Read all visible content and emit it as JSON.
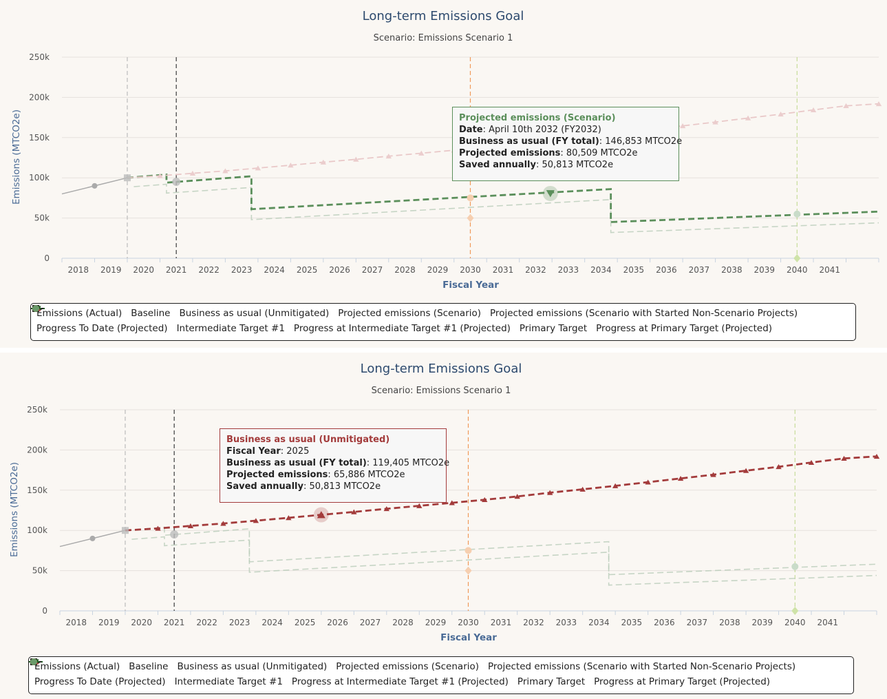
{
  "charts": [
    {
      "title": "Long-term Emissions Goal",
      "subtitle": "Scenario: Emissions Scenario 1",
      "ylabel": "Emissions (MTCO2e)",
      "xlabel": "Fiscal Year",
      "yticks": [
        "0",
        "50k",
        "100k",
        "150k",
        "200k",
        "250k"
      ],
      "xticks": [
        "2018",
        "2019",
        "2020",
        "2021",
        "2022",
        "2023",
        "2024",
        "2025",
        "2026",
        "2027",
        "2028",
        "2029",
        "2030",
        "2031",
        "2032",
        "2033",
        "2034",
        "2035",
        "2036",
        "2037",
        "2038",
        "2039",
        "2040",
        "2041"
      ],
      "tooltip": {
        "header": "Projected emissions (Scenario)",
        "rows": [
          {
            "k": "Date",
            "v": ": April 10th 2032 (FY2032)"
          },
          {
            "k": "Business as usual (FY total)",
            "v": ": 146,853 MTCO2e"
          },
          {
            "k": "Projected emissions",
            "v": ": 80,509 MTCO2e"
          },
          {
            "k": "Saved annually",
            "v": ": 50,813 MTCO2e"
          }
        ]
      }
    },
    {
      "title": "Long-term Emissions Goal",
      "subtitle": "Scenario: Emissions Scenario 1",
      "ylabel": "Emissions (MTCO2e)",
      "xlabel": "Fiscal Year",
      "yticks": [
        "0",
        "50k",
        "100k",
        "150k",
        "200k",
        "250k"
      ],
      "xticks": [
        "2018",
        "2019",
        "2020",
        "2021",
        "2022",
        "2023",
        "2024",
        "2025",
        "2026",
        "2027",
        "2028",
        "2029",
        "2030",
        "2031",
        "2032",
        "2033",
        "2034",
        "2035",
        "2036",
        "2037",
        "2038",
        "2039",
        "2040",
        "2041"
      ],
      "tooltip": {
        "header": "Business as usual (Unmitigated)",
        "rows": [
          {
            "k": "Fiscal Year",
            "v": ": 2025"
          },
          {
            "k": "Business as usual (FY total)",
            "v": ": 119,405 MTCO2e"
          },
          {
            "k": "Projected emissions",
            "v": ": 65,886 MTCO2e"
          },
          {
            "k": "Saved annually",
            "v": ": 50,813 MTCO2e"
          }
        ]
      }
    }
  ],
  "legend": [
    {
      "label": "Emissions (Actual)",
      "symbol": "line-dot",
      "color": "#222222"
    },
    {
      "label": "Baseline",
      "symbol": "square",
      "color": "#222222"
    },
    {
      "label": "Business as usual (Unmitigated)",
      "symbol": "line-tri",
      "color": "#a33b3b"
    },
    {
      "label": "Projected emissions (Scenario)",
      "symbol": "line-tridown",
      "color": "#5b8f5b"
    },
    {
      "label": "Projected emissions (Scenario with Started Non-Scenario Projects)",
      "symbol": "line-tridown",
      "color": "#1f5a1f"
    },
    {
      "label": "Progress To Date (Projected)",
      "symbol": "dot",
      "color": "#111111"
    },
    {
      "label": "Intermediate Target #1",
      "symbol": "diamond",
      "color": "#f0904a"
    },
    {
      "label": "Progress at Intermediate Target #1 (Projected)",
      "symbol": "dot",
      "color": "#f0904a"
    },
    {
      "label": "Primary Target",
      "symbol": "diamond",
      "color": "#8bbd2e"
    },
    {
      "label": "Progress at Primary Target (Projected)",
      "symbol": "dot",
      "color": "#6a9a6a"
    }
  ],
  "colors": {
    "actual": "#aaaaaa",
    "bau": "#a33b3b",
    "scenario": "#5b8f5b",
    "scenario_started": "#1f5a1f",
    "intermediate": "#f0904a",
    "primary": "#8bbd2e"
  },
  "chart_data": [
    {
      "type": "line",
      "title": "Long-term Emissions Goal",
      "subtitle": "Scenario: Emissions Scenario 1",
      "xlabel": "Fiscal Year",
      "ylabel": "Emissions (MTCO2e)",
      "xlim": [
        2017.5,
        2042.5
      ],
      "ylim": [
        0,
        250000
      ],
      "highlighted_series": "Projected emissions (Scenario)",
      "series": [
        {
          "name": "Emissions (Actual)",
          "x": [
            2017.5,
            2018.5,
            2019.5
          ],
          "y": [
            80000,
            90000,
            100000
          ]
        },
        {
          "name": "Business as usual (Unmitigated)",
          "x": [
            2019.5,
            2020.5,
            2021.5,
            2022.5,
            2023.5,
            2024.5,
            2025.5,
            2026.5,
            2027.5,
            2028.5,
            2029.5,
            2030.5,
            2031.5,
            2032.5,
            2033.5,
            2034.5,
            2035.5,
            2036.5,
            2037.5,
            2038.5,
            2039.5,
            2040.5,
            2041.5,
            2042.5
          ],
          "y": [
            100000,
            102500,
            105600,
            108600,
            112100,
            115700,
            119400,
            123000,
            126900,
            130600,
            134300,
            138100,
            142200,
            146900,
            151100,
            155400,
            160000,
            164600,
            169300,
            174300,
            179100,
            184400,
            189500,
            192000
          ]
        },
        {
          "name": "Projected emissions (Scenario with Started Non-Scenario Projects)",
          "x": [
            2019.5,
            2020.7,
            2020.7,
            2023.3,
            2023.3,
            2034.3,
            2034.3,
            2042.5
          ],
          "y": [
            100000,
            104000,
            94000,
            102000,
            61000,
            86000,
            45000,
            58000
          ]
        },
        {
          "name": "Projected emissions (Scenario)",
          "x": [
            2019.7,
            2020.7,
            2020.7,
            2023.3,
            2023.3,
            2034.3,
            2034.3,
            2042.5
          ],
          "y": [
            89000,
            92000,
            81000,
            88000,
            48000,
            73000,
            32000,
            44000
          ]
        }
      ],
      "points": [
        {
          "name": "Baseline",
          "x": 2019.5,
          "y": 100000
        },
        {
          "name": "Progress To Date (Projected)",
          "x": 2021,
          "y": 95000
        },
        {
          "name": "Intermediate Target #1",
          "x": 2030,
          "y": 50000
        },
        {
          "name": "Progress at Intermediate Target #1 (Projected)",
          "x": 2030,
          "y": 75000
        },
        {
          "name": "Primary Target",
          "x": 2040,
          "y": 0
        },
        {
          "name": "Progress at Primary Target (Projected)",
          "x": 2040,
          "y": 55000
        }
      ],
      "vertical_lines": [
        2019.5,
        2021,
        2030,
        2040
      ]
    },
    {
      "type": "line",
      "title": "Long-term Emissions Goal",
      "subtitle": "Scenario: Emissions Scenario 1",
      "xlabel": "Fiscal Year",
      "ylabel": "Emissions (MTCO2e)",
      "xlim": [
        2017.5,
        2042.5
      ],
      "ylim": [
        0,
        250000
      ],
      "highlighted_series": "Business as usual (Unmitigated)",
      "series": [
        {
          "name": "Emissions (Actual)",
          "x": [
            2017.5,
            2018.5,
            2019.5
          ],
          "y": [
            80000,
            90000,
            100000
          ]
        },
        {
          "name": "Business as usual (Unmitigated)",
          "x": [
            2019.5,
            2020.5,
            2021.5,
            2022.5,
            2023.5,
            2024.5,
            2025.5,
            2026.5,
            2027.5,
            2028.5,
            2029.5,
            2030.5,
            2031.5,
            2032.5,
            2033.5,
            2034.5,
            2035.5,
            2036.5,
            2037.5,
            2038.5,
            2039.5,
            2040.5,
            2041.5,
            2042.5
          ],
          "y": [
            100000,
            102500,
            105600,
            108600,
            112100,
            115700,
            119400,
            123000,
            126900,
            130600,
            134300,
            138100,
            142200,
            146900,
            151100,
            155400,
            160000,
            164600,
            169300,
            174300,
            179100,
            184400,
            189500,
            192000
          ]
        },
        {
          "name": "Projected emissions (Scenario with Started Non-Scenario Projects)",
          "x": [
            2019.5,
            2020.7,
            2020.7,
            2023.3,
            2023.3,
            2034.3,
            2034.3,
            2042.5
          ],
          "y": [
            100000,
            104000,
            94000,
            102000,
            61000,
            86000,
            45000,
            58000
          ]
        },
        {
          "name": "Projected emissions (Scenario)",
          "x": [
            2019.7,
            2020.7,
            2020.7,
            2023.3,
            2023.3,
            2034.3,
            2034.3,
            2042.5
          ],
          "y": [
            89000,
            92000,
            81000,
            88000,
            48000,
            73000,
            32000,
            44000
          ]
        }
      ],
      "points": [
        {
          "name": "Baseline",
          "x": 2019.5,
          "y": 100000
        },
        {
          "name": "Progress To Date (Projected)",
          "x": 2021,
          "y": 95000
        },
        {
          "name": "Intermediate Target #1",
          "x": 2030,
          "y": 50000
        },
        {
          "name": "Progress at Intermediate Target #1 (Projected)",
          "x": 2030,
          "y": 75000
        },
        {
          "name": "Primary Target",
          "x": 2040,
          "y": 0
        },
        {
          "name": "Progress at Primary Target (Projected)",
          "x": 2040,
          "y": 55000
        }
      ],
      "vertical_lines": [
        2019.5,
        2021,
        2030,
        2040
      ]
    }
  ]
}
